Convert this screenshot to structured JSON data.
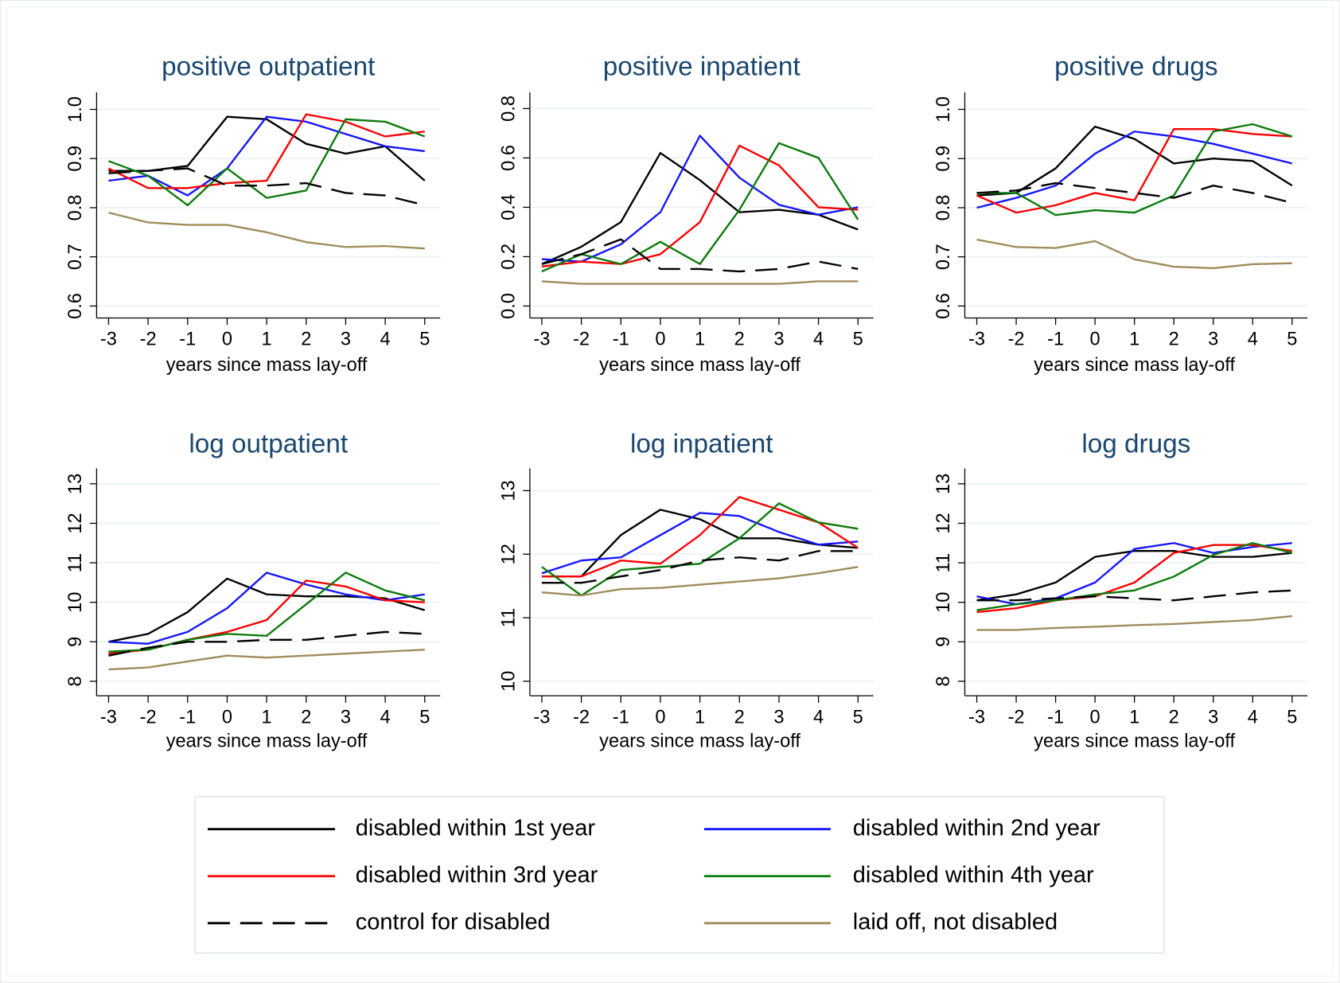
{
  "legend": [
    {
      "name": "disabled within 1st year",
      "color": "#000000",
      "dash": false
    },
    {
      "name": "disabled within 2nd year",
      "color": "#1414ff",
      "dash": false
    },
    {
      "name": "disabled within  3rd year",
      "color": "#ff0000",
      "dash": false
    },
    {
      "name": "disabled within 4th year",
      "color": "#0a7a0a",
      "dash": false
    },
    {
      "name": "control for disabled",
      "color": "#000000",
      "dash": true
    },
    {
      "name": "laid off, not disabled",
      "color": "#a08c5a",
      "dash": false
    }
  ],
  "chart_data": [
    {
      "type": "line",
      "title": "positive outpatient",
      "x_label": "years since mass lay-off",
      "x": [
        -3,
        -2,
        -1,
        0,
        1,
        2,
        3,
        4,
        5
      ],
      "xlim": [
        -3,
        5
      ],
      "xticks": [
        -3,
        -2,
        -1,
        0,
        1,
        2,
        3,
        4,
        5
      ],
      "ylim": [
        0.6,
        1
      ],
      "yticks": [
        0.6,
        0.7,
        0.8,
        0.9,
        {
          "value": 1,
          "label": "1.0"
        }
      ],
      "grid": true,
      "series": [
        {
          "values": [
            0.875,
            0.875,
            0.885,
            0.985,
            0.98,
            0.93,
            0.91,
            0.925,
            0.855
          ]
        },
        {
          "values": [
            0.855,
            0.865,
            0.825,
            0.88,
            0.985,
            0.975,
            0.95,
            0.925,
            0.915
          ]
        },
        {
          "values": [
            0.88,
            0.84,
            0.84,
            0.85,
            0.855,
            0.99,
            0.975,
            0.945,
            0.955
          ]
        },
        {
          "values": [
            0.895,
            0.865,
            0.805,
            0.88,
            0.82,
            0.835,
            0.98,
            0.975,
            0.945
          ]
        },
        {
          "values": [
            0.87,
            0.875,
            0.88,
            0.845,
            0.845,
            0.85,
            0.83,
            0.825,
            0.805
          ]
        },
        {
          "values": [
            0.79,
            0.77,
            0.765,
            0.765,
            0.75,
            0.73,
            0.72,
            0.722,
            0.717
          ]
        }
      ]
    },
    {
      "type": "line",
      "title": "positive inpatient",
      "x_label": "years since mass lay-off",
      "x": [
        -3,
        -2,
        -1,
        0,
        1,
        2,
        3,
        4,
        5
      ],
      "xlim": [
        -3,
        5
      ],
      "xticks": [
        -3,
        -2,
        -1,
        0,
        1,
        2,
        3,
        4,
        5
      ],
      "ylim": [
        0,
        0.8
      ],
      "yticks": [
        {
          "value": 0,
          "label": "0.0"
        },
        0.2,
        0.4,
        0.6,
        0.8
      ],
      "grid": true,
      "series": [
        {
          "values": [
            0.17,
            0.24,
            0.34,
            0.62,
            0.51,
            0.38,
            0.39,
            0.37,
            0.31
          ]
        },
        {
          "values": [
            0.19,
            0.18,
            0.25,
            0.38,
            0.69,
            0.52,
            0.41,
            0.37,
            0.4
          ]
        },
        {
          "values": [
            0.16,
            0.18,
            0.17,
            0.21,
            0.34,
            0.65,
            0.57,
            0.4,
            0.39
          ]
        },
        {
          "values": [
            0.14,
            0.21,
            0.17,
            0.26,
            0.17,
            0.39,
            0.66,
            0.6,
            0.35
          ]
        },
        {
          "values": [
            0.17,
            0.21,
            0.27,
            0.15,
            0.15,
            0.14,
            0.15,
            0.18,
            0.15
          ]
        },
        {
          "values": [
            0.1,
            0.09,
            0.09,
            0.09,
            0.09,
            0.09,
            0.09,
            0.1,
            0.1
          ]
        }
      ]
    },
    {
      "type": "line",
      "title": "positive drugs",
      "x_label": "years since mass lay-off",
      "x": [
        -3,
        -2,
        -1,
        0,
        1,
        2,
        3,
        4,
        5
      ],
      "xlim": [
        -3,
        5
      ],
      "xticks": [
        -3,
        -2,
        -1,
        0,
        1,
        2,
        3,
        4,
        5
      ],
      "ylim": [
        0.6,
        1
      ],
      "yticks": [
        0.6,
        0.7,
        0.8,
        0.9,
        {
          "value": 1,
          "label": "1.0"
        }
      ],
      "grid": true,
      "series": [
        {
          "values": [
            0.825,
            0.83,
            0.88,
            0.965,
            0.94,
            0.89,
            0.9,
            0.895,
            0.845
          ]
        },
        {
          "values": [
            0.8,
            0.82,
            0.845,
            0.91,
            0.955,
            0.945,
            0.93,
            0.91,
            0.89
          ]
        },
        {
          "values": [
            0.825,
            0.79,
            0.805,
            0.83,
            0.815,
            0.96,
            0.96,
            0.95,
            0.945
          ]
        },
        {
          "values": [
            0.83,
            0.83,
            0.785,
            0.795,
            0.79,
            0.825,
            0.955,
            0.97,
            0.945
          ]
        },
        {
          "values": [
            0.83,
            0.835,
            0.85,
            0.84,
            0.83,
            0.82,
            0.845,
            0.83,
            0.81
          ]
        },
        {
          "values": [
            0.735,
            0.72,
            0.718,
            0.732,
            0.695,
            0.68,
            0.677,
            0.685,
            0.687
          ]
        }
      ]
    },
    {
      "type": "line",
      "title": "log outpatient",
      "x_label": "years since mass lay-off",
      "x": [
        -3,
        -2,
        -1,
        0,
        1,
        2,
        3,
        4,
        5
      ],
      "xlim": [
        -3,
        5
      ],
      "xticks": [
        -3,
        -2,
        -1,
        0,
        1,
        2,
        3,
        4,
        5
      ],
      "ylim": [
        8,
        13
      ],
      "yticks": [
        8,
        9,
        10,
        11,
        12,
        13
      ],
      "grid": true,
      "series": [
        {
          "values": [
            9.0,
            9.2,
            9.75,
            10.6,
            10.2,
            10.15,
            10.15,
            10.1,
            9.8
          ]
        },
        {
          "values": [
            9.0,
            8.95,
            9.25,
            9.85,
            10.75,
            10.45,
            10.2,
            10.05,
            10.2
          ]
        },
        {
          "values": [
            8.7,
            8.8,
            9.05,
            9.25,
            9.55,
            10.55,
            10.4,
            10.05,
            10.0
          ]
        },
        {
          "values": [
            8.75,
            8.8,
            9.05,
            9.2,
            9.15,
            9.95,
            10.75,
            10.3,
            10.05
          ]
        },
        {
          "values": [
            8.65,
            8.85,
            9.0,
            9.0,
            9.05,
            9.05,
            9.15,
            9.25,
            9.2
          ]
        },
        {
          "values": [
            8.3,
            8.35,
            8.5,
            8.65,
            8.6,
            8.65,
            8.7,
            8.75,
            8.8
          ]
        }
      ]
    },
    {
      "type": "line",
      "title": "log inpatient",
      "x_label": "years since mass lay-off",
      "x": [
        -3,
        -2,
        -1,
        0,
        1,
        2,
        3,
        4,
        5
      ],
      "xlim": [
        -3,
        5
      ],
      "xticks": [
        -3,
        -2,
        -1,
        0,
        1,
        2,
        3,
        4,
        5
      ],
      "ylim": [
        10,
        13
      ],
      "yticks": [
        10,
        11,
        12,
        13
      ],
      "grid": true,
      "series": [
        {
          "values": [
            11.65,
            11.65,
            12.3,
            12.7,
            12.55,
            12.25,
            12.25,
            12.15,
            12.1
          ]
        },
        {
          "values": [
            11.7,
            11.9,
            11.95,
            12.3,
            12.65,
            12.6,
            12.35,
            12.15,
            12.2
          ]
        },
        {
          "values": [
            11.65,
            11.65,
            11.9,
            11.85,
            12.3,
            12.9,
            12.7,
            12.5,
            12.1
          ]
        },
        {
          "values": [
            11.8,
            11.35,
            11.75,
            11.8,
            11.85,
            12.25,
            12.8,
            12.5,
            12.4
          ]
        },
        {
          "values": [
            11.55,
            11.55,
            11.65,
            11.75,
            11.9,
            11.95,
            11.9,
            12.05,
            12.05
          ]
        },
        {
          "values": [
            11.4,
            11.35,
            11.45,
            11.47,
            11.52,
            11.57,
            11.62,
            11.7,
            11.8
          ]
        }
      ]
    },
    {
      "type": "line",
      "title": "log drugs",
      "x_label": "years since mass lay-off",
      "x": [
        -3,
        -2,
        -1,
        0,
        1,
        2,
        3,
        4,
        5
      ],
      "xlim": [
        -3,
        5
      ],
      "xticks": [
        -3,
        -2,
        -1,
        0,
        1,
        2,
        3,
        4,
        5
      ],
      "ylim": [
        8,
        13
      ],
      "yticks": [
        8,
        9,
        10,
        11,
        12,
        13
      ],
      "grid": true,
      "series": [
        {
          "values": [
            10.05,
            10.2,
            10.5,
            11.15,
            11.3,
            11.3,
            11.15,
            11.15,
            11.25
          ]
        },
        {
          "values": [
            10.15,
            9.95,
            10.1,
            10.5,
            11.35,
            11.5,
            11.25,
            11.4,
            11.5
          ]
        },
        {
          "values": [
            9.75,
            9.85,
            10.05,
            10.15,
            10.5,
            11.25,
            11.45,
            11.45,
            11.3
          ]
        },
        {
          "values": [
            9.8,
            9.95,
            10.05,
            10.2,
            10.3,
            10.65,
            11.2,
            11.5,
            11.25
          ]
        },
        {
          "values": [
            10.05,
            10.05,
            10.1,
            10.15,
            10.1,
            10.05,
            10.15,
            10.25,
            10.3
          ]
        },
        {
          "values": [
            9.3,
            9.3,
            9.35,
            9.38,
            9.42,
            9.45,
            9.5,
            9.55,
            9.65
          ]
        }
      ]
    }
  ]
}
